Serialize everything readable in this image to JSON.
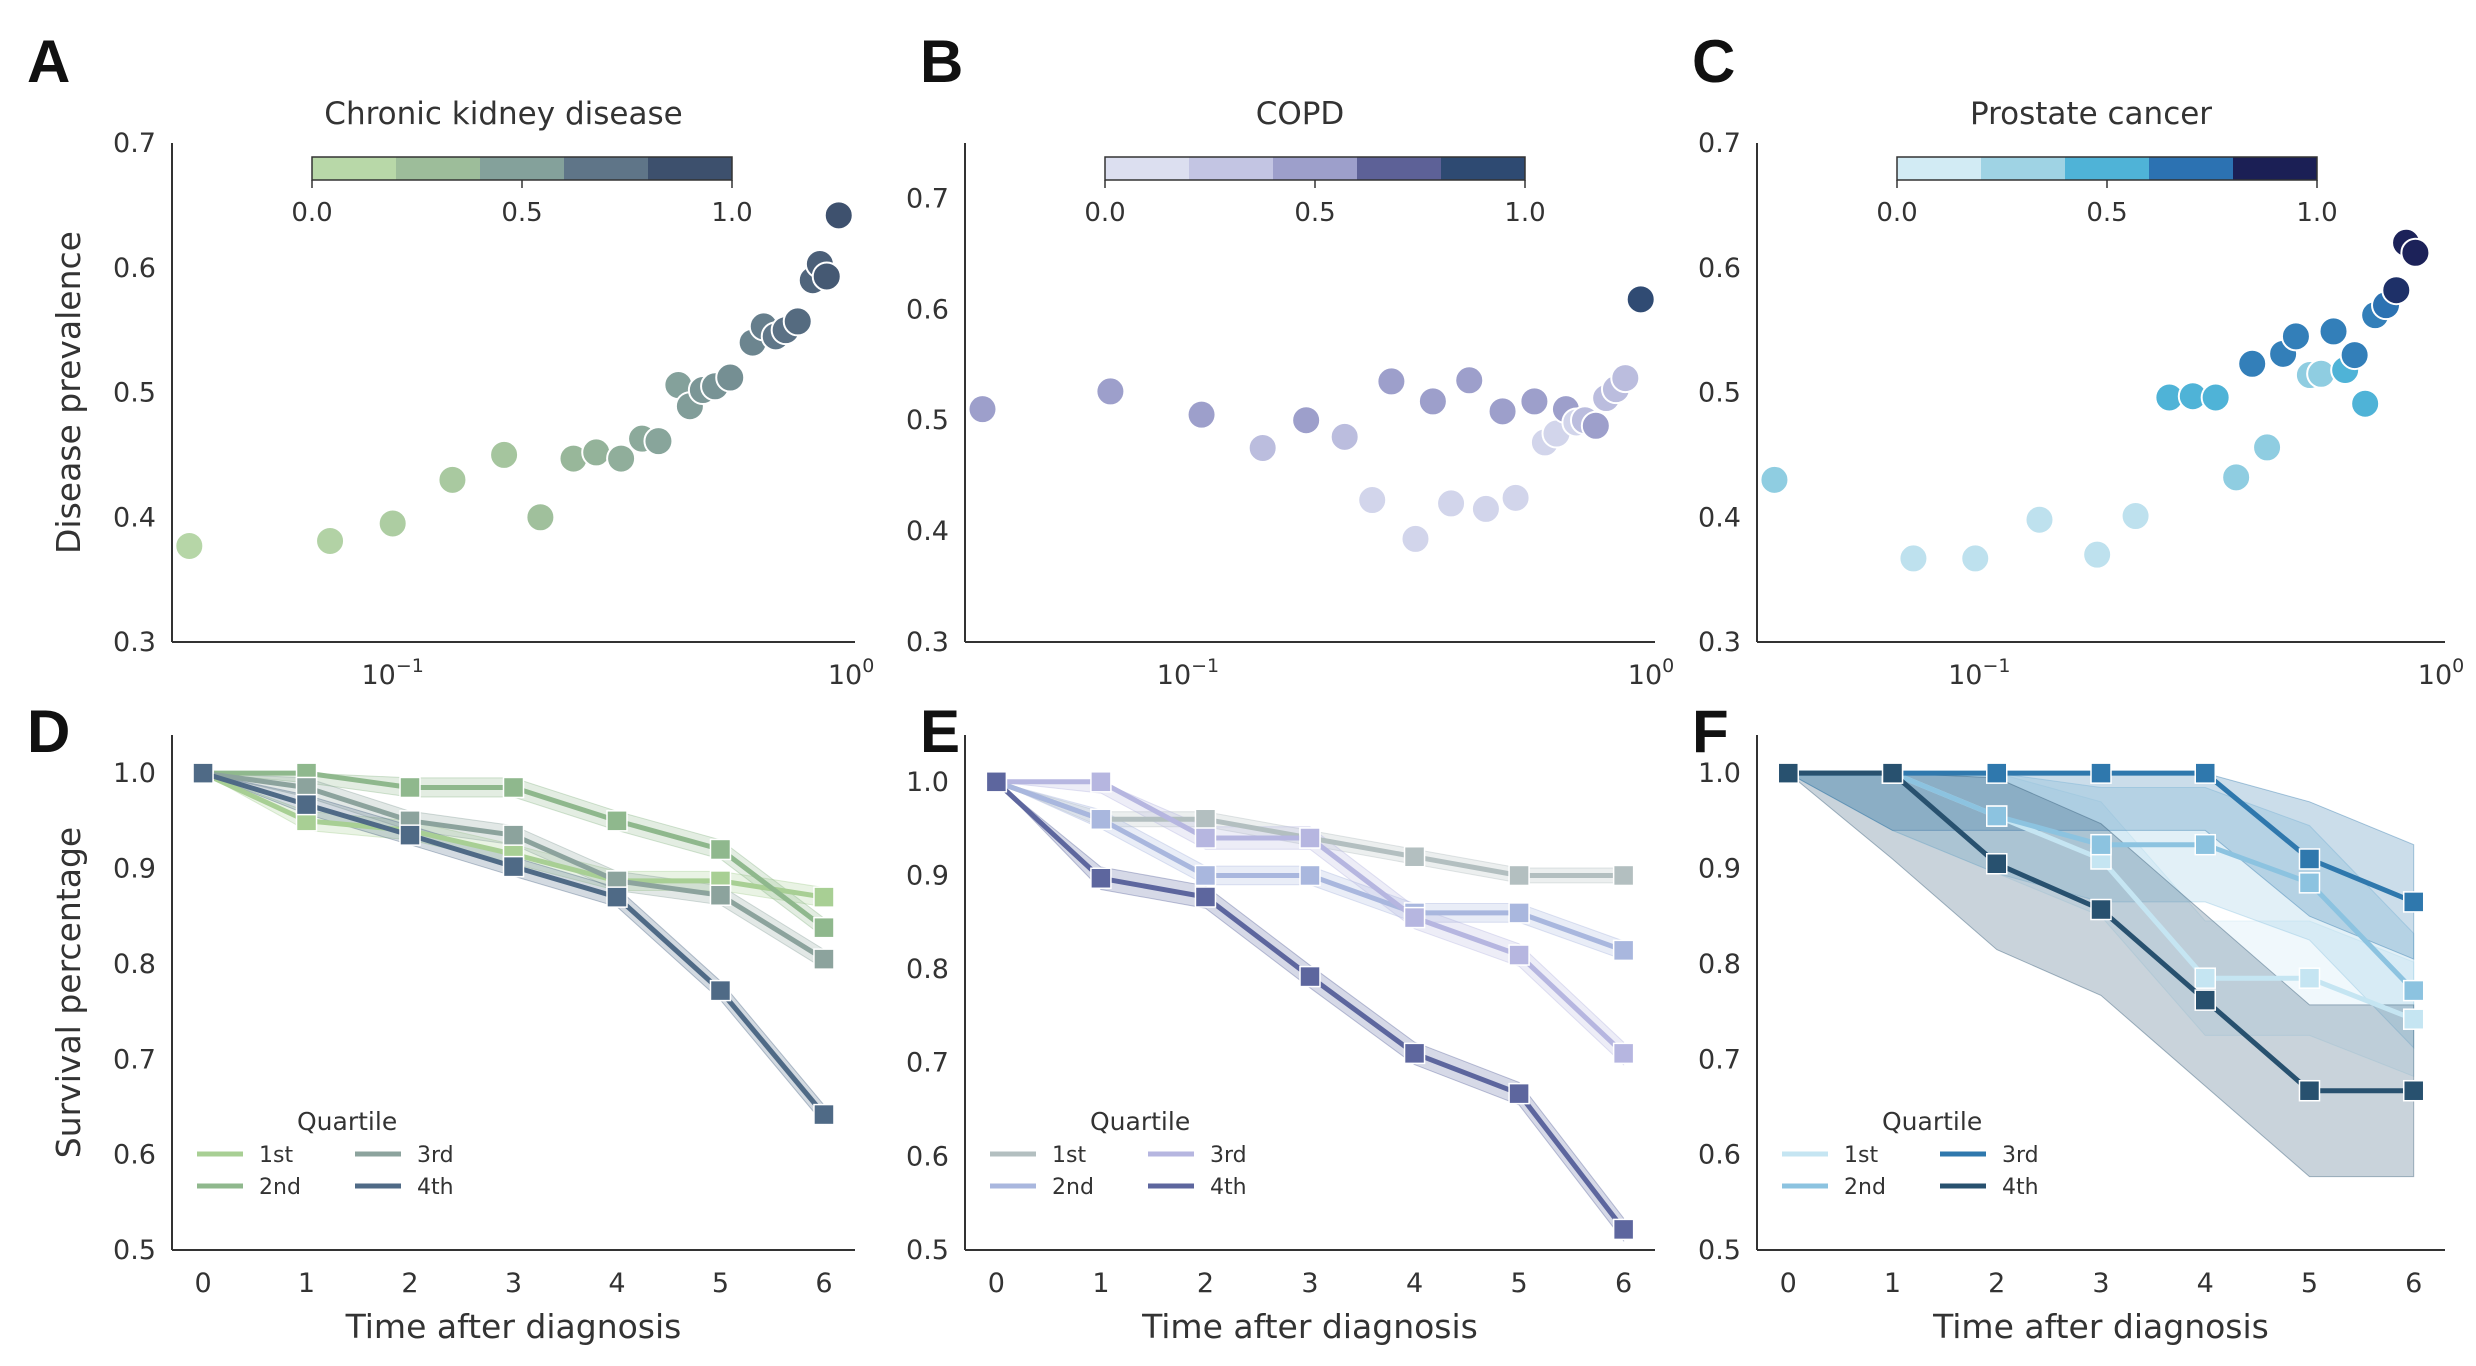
{
  "chart_data": [
    {
      "panel_label": "A",
      "type": "scatter",
      "title": "Chronic kidney disease",
      "xlabel": "",
      "ylabel": "Disease prevalence",
      "xscale": "log",
      "xlim": [
        0.033,
        1.02
      ],
      "ylim": [
        0.3,
        0.7
      ],
      "yticks": [
        "0.3",
        "0.4",
        "0.5",
        "0.6",
        "0.7"
      ],
      "xticks": [
        "10",
        "10"
      ],
      "xtick_exponents": [
        "−1",
        "0"
      ],
      "xtick_values": [
        0.1,
        1.0
      ],
      "colorbar": {
        "ticks": [
          "0.0",
          "0.5",
          "1.0"
        ],
        "colors": [
          "#b8d8a8",
          "#9dbd9a",
          "#84a19b",
          "#5f7588",
          "#3d506d"
        ]
      },
      "grid": false,
      "points": [
        {
          "x": 0.036,
          "y": 0.377,
          "c": 0.02
        },
        {
          "x": 0.073,
          "y": 0.381,
          "c": 0.06
        },
        {
          "x": 0.1,
          "y": 0.395,
          "c": 0.1
        },
        {
          "x": 0.135,
          "y": 0.43,
          "c": 0.14
        },
        {
          "x": 0.175,
          "y": 0.45,
          "c": 0.18
        },
        {
          "x": 0.21,
          "y": 0.4,
          "c": 0.22
        },
        {
          "x": 0.248,
          "y": 0.447,
          "c": 0.3
        },
        {
          "x": 0.278,
          "y": 0.452,
          "c": 0.34
        },
        {
          "x": 0.315,
          "y": 0.447,
          "c": 0.38
        },
        {
          "x": 0.35,
          "y": 0.463,
          "c": 0.42
        },
        {
          "x": 0.38,
          "y": 0.461,
          "c": 0.46
        },
        {
          "x": 0.42,
          "y": 0.506,
          "c": 0.5
        },
        {
          "x": 0.445,
          "y": 0.489,
          "c": 0.52
        },
        {
          "x": 0.475,
          "y": 0.502,
          "c": 0.56
        },
        {
          "x": 0.505,
          "y": 0.505,
          "c": 0.58
        },
        {
          "x": 0.545,
          "y": 0.512,
          "c": 0.6
        },
        {
          "x": 0.61,
          "y": 0.54,
          "c": 0.66
        },
        {
          "x": 0.645,
          "y": 0.553,
          "c": 0.7
        },
        {
          "x": 0.685,
          "y": 0.545,
          "c": 0.74
        },
        {
          "x": 0.72,
          "y": 0.55,
          "c": 0.78
        },
        {
          "x": 0.765,
          "y": 0.557,
          "c": 0.82
        },
        {
          "x": 0.825,
          "y": 0.59,
          "c": 0.86
        },
        {
          "x": 0.855,
          "y": 0.603,
          "c": 0.9
        },
        {
          "x": 0.885,
          "y": 0.593,
          "c": 0.94
        },
        {
          "x": 0.94,
          "y": 0.642,
          "c": 0.99
        }
      ]
    },
    {
      "panel_label": "B",
      "type": "scatter",
      "title": "COPD",
      "xlabel": "",
      "ylabel": "",
      "xscale": "log",
      "xlim": [
        0.033,
        1.02
      ],
      "ylim": [
        0.3,
        0.75
      ],
      "yticks": [
        "0.3",
        "0.4",
        "0.5",
        "0.6",
        "0.7"
      ],
      "xticks": [
        "10",
        "10"
      ],
      "xtick_exponents": [
        "−1",
        "0"
      ],
      "xtick_values": [
        0.1,
        1.0
      ],
      "colorbar": {
        "ticks": [
          "0.0",
          "0.5",
          "1.0"
        ],
        "colors": [
          "#dcdff0",
          "#c3c5e3",
          "#9d9fcb",
          "#5d6197",
          "#2e4a72"
        ]
      },
      "grid": false,
      "points": [
        {
          "x": 0.036,
          "y": 0.51,
          "c": 0.5
        },
        {
          "x": 0.068,
          "y": 0.526,
          "c": 0.5
        },
        {
          "x": 0.107,
          "y": 0.505,
          "c": 0.5
        },
        {
          "x": 0.145,
          "y": 0.475,
          "c": 0.3
        },
        {
          "x": 0.18,
          "y": 0.5,
          "c": 0.5
        },
        {
          "x": 0.218,
          "y": 0.485,
          "c": 0.3
        },
        {
          "x": 0.25,
          "y": 0.428,
          "c": 0.1
        },
        {
          "x": 0.275,
          "y": 0.535,
          "c": 0.5
        },
        {
          "x": 0.31,
          "y": 0.393,
          "c": 0.1
        },
        {
          "x": 0.338,
          "y": 0.517,
          "c": 0.5
        },
        {
          "x": 0.37,
          "y": 0.425,
          "c": 0.1
        },
        {
          "x": 0.405,
          "y": 0.536,
          "c": 0.5
        },
        {
          "x": 0.44,
          "y": 0.42,
          "c": 0.1
        },
        {
          "x": 0.478,
          "y": 0.508,
          "c": 0.5
        },
        {
          "x": 0.51,
          "y": 0.43,
          "c": 0.1
        },
        {
          "x": 0.56,
          "y": 0.517,
          "c": 0.5
        },
        {
          "x": 0.59,
          "y": 0.48,
          "c": 0.1
        },
        {
          "x": 0.625,
          "y": 0.488,
          "c": 0.1
        },
        {
          "x": 0.655,
          "y": 0.51,
          "c": 0.5
        },
        {
          "x": 0.69,
          "y": 0.498,
          "c": 0.1
        },
        {
          "x": 0.72,
          "y": 0.5,
          "c": 0.3
        },
        {
          "x": 0.76,
          "y": 0.495,
          "c": 0.5
        },
        {
          "x": 0.8,
          "y": 0.52,
          "c": 0.3
        },
        {
          "x": 0.84,
          "y": 0.528,
          "c": 0.3
        },
        {
          "x": 0.88,
          "y": 0.538,
          "c": 0.3
        },
        {
          "x": 0.95,
          "y": 0.609,
          "c": 0.99
        }
      ]
    },
    {
      "panel_label": "C",
      "type": "scatter",
      "title": "Prostate cancer",
      "xlabel": "",
      "ylabel": "",
      "xscale": "log",
      "xlim": [
        0.033,
        1.02
      ],
      "ylim": [
        0.3,
        0.7
      ],
      "yticks": [
        "0.3",
        "0.4",
        "0.5",
        "0.6",
        "0.7"
      ],
      "xticks": [
        "10",
        "10"
      ],
      "xtick_exponents": [
        "−1",
        "0"
      ],
      "xtick_values": [
        0.1,
        1.0
      ],
      "colorbar": {
        "ticks": [
          "0.0",
          "0.5",
          "1.0"
        ],
        "colors": [
          "#d2ebf4",
          "#9fd3e4",
          "#4fb3d7",
          "#2c72b2",
          "#1b1f55"
        ]
      },
      "grid": false,
      "points": [
        {
          "x": 0.036,
          "y": 0.43,
          "c": 0.3
        },
        {
          "x": 0.072,
          "y": 0.367,
          "c": 0.1
        },
        {
          "x": 0.098,
          "y": 0.367,
          "c": 0.1
        },
        {
          "x": 0.135,
          "y": 0.398,
          "c": 0.1
        },
        {
          "x": 0.18,
          "y": 0.37,
          "c": 0.1
        },
        {
          "x": 0.218,
          "y": 0.401,
          "c": 0.1
        },
        {
          "x": 0.258,
          "y": 0.496,
          "c": 0.5
        },
        {
          "x": 0.29,
          "y": 0.497,
          "c": 0.5
        },
        {
          "x": 0.325,
          "y": 0.496,
          "c": 0.5
        },
        {
          "x": 0.36,
          "y": 0.432,
          "c": 0.3
        },
        {
          "x": 0.39,
          "y": 0.523,
          "c": 0.7
        },
        {
          "x": 0.42,
          "y": 0.456,
          "c": 0.3
        },
        {
          "x": 0.455,
          "y": 0.531,
          "c": 0.7
        },
        {
          "x": 0.485,
          "y": 0.545,
          "c": 0.7
        },
        {
          "x": 0.52,
          "y": 0.514,
          "c": 0.3
        },
        {
          "x": 0.55,
          "y": 0.515,
          "c": 0.3
        },
        {
          "x": 0.585,
          "y": 0.549,
          "c": 0.7
        },
        {
          "x": 0.62,
          "y": 0.518,
          "c": 0.5
        },
        {
          "x": 0.65,
          "y": 0.53,
          "c": 0.7
        },
        {
          "x": 0.685,
          "y": 0.491,
          "c": 0.5
        },
        {
          "x": 0.72,
          "y": 0.562,
          "c": 0.7
        },
        {
          "x": 0.76,
          "y": 0.57,
          "c": 0.75
        },
        {
          "x": 0.8,
          "y": 0.582,
          "c": 0.95
        },
        {
          "x": 0.84,
          "y": 0.62,
          "c": 0.99
        },
        {
          "x": 0.88,
          "y": 0.612,
          "c": 0.99
        }
      ]
    },
    {
      "panel_label": "D",
      "type": "line",
      "title": "",
      "xlabel": "Time after diagnosis",
      "ylabel": "Survival percentage",
      "x": [
        0,
        1,
        2,
        3,
        4,
        5,
        6
      ],
      "xlim": [
        -0.3,
        6.3
      ],
      "ylim": [
        0.5,
        1.04
      ],
      "xticks": [
        "0",
        "1",
        "2",
        "3",
        "4",
        "5",
        "6"
      ],
      "yticks": [
        "0.5",
        "0.6",
        "0.7",
        "0.8",
        "0.9",
        "1.0"
      ],
      "legend": {
        "title": "Quartile",
        "placement": "lower-left"
      },
      "grid": false,
      "series": [
        {
          "name": "1st",
          "color": "#a8cf94",
          "values": [
            1.0,
            0.95,
            0.94,
            0.915,
            0.887,
            0.887,
            0.87
          ],
          "band": 0.01
        },
        {
          "name": "2nd",
          "color": "#8fb88d",
          "values": [
            1.0,
            1.0,
            0.985,
            0.985,
            0.95,
            0.92,
            0.838
          ],
          "band": 0.01
        },
        {
          "name": "3rd",
          "color": "#8ca39d",
          "values": [
            1.0,
            0.985,
            0.95,
            0.935,
            0.887,
            0.872,
            0.805
          ],
          "band": 0.01
        },
        {
          "name": "4th",
          "color": "#4f6a86",
          "values": [
            1.0,
            0.967,
            0.935,
            0.902,
            0.87,
            0.772,
            0.642
          ],
          "band": 0.01
        }
      ]
    },
    {
      "panel_label": "E",
      "type": "line",
      "title": "",
      "xlabel": "Time after diagnosis",
      "ylabel": "",
      "x": [
        0,
        1,
        2,
        3,
        4,
        5,
        6
      ],
      "xlim": [
        -0.3,
        6.3
      ],
      "ylim": [
        0.5,
        1.05
      ],
      "xticks": [
        "0",
        "1",
        "2",
        "3",
        "4",
        "5",
        "6"
      ],
      "yticks": [
        "0.5",
        "0.6",
        "0.7",
        "0.8",
        "0.9",
        "1.0"
      ],
      "legend": {
        "title": "Quartile",
        "placement": "lower-left"
      },
      "grid": false,
      "series": [
        {
          "name": "1st",
          "color": "#b3bfc0",
          "values": [
            1.0,
            0.96,
            0.96,
            0.94,
            0.92,
            0.9,
            0.9
          ],
          "band": 0.008
        },
        {
          "name": "2nd",
          "color": "#a9b7de",
          "values": [
            1.0,
            0.96,
            0.9,
            0.9,
            0.86,
            0.86,
            0.82
          ],
          "band": 0.01
        },
        {
          "name": "3rd",
          "color": "#b6b6e0",
          "values": [
            1.0,
            1.0,
            0.94,
            0.94,
            0.855,
            0.815,
            0.71
          ],
          "band": 0.012
        },
        {
          "name": "4th",
          "color": "#5d669e",
          "values": [
            1.0,
            0.897,
            0.877,
            0.792,
            0.71,
            0.667,
            0.522
          ],
          "band": 0.012
        }
      ]
    },
    {
      "panel_label": "F",
      "type": "line",
      "title": "",
      "xlabel": "Time after diagnosis",
      "ylabel": "",
      "x": [
        0,
        1,
        2,
        3,
        4,
        5,
        6
      ],
      "xlim": [
        -0.3,
        6.3
      ],
      "ylim": [
        0.5,
        1.04
      ],
      "xticks": [
        "0",
        "1",
        "2",
        "3",
        "4",
        "5",
        "6"
      ],
      "yticks": [
        "0.5",
        "0.6",
        "0.7",
        "0.8",
        "0.9",
        "1.0"
      ],
      "legend": {
        "title": "Quartile",
        "placement": "lower-left"
      },
      "grid": false,
      "series": [
        {
          "name": "1st",
          "color": "#c5e5f2",
          "values": [
            1.0,
            1.0,
            0.955,
            0.91,
            0.785,
            0.785,
            0.742
          ],
          "band": 0.06
        },
        {
          "name": "2nd",
          "color": "#8cc3e0",
          "values": [
            1.0,
            1.0,
            0.955,
            0.925,
            0.925,
            0.885,
            0.772
          ],
          "band": 0.06
        },
        {
          "name": "3rd",
          "color": "#2f78ad",
          "values": [
            1.0,
            1.0,
            1.0,
            1.0,
            1.0,
            0.91,
            0.865
          ],
          "band": 0.06
        },
        {
          "name": "4th",
          "color": "#28516f",
          "values": [
            1.0,
            1.0,
            0.905,
            0.857,
            0.762,
            0.667,
            0.667
          ],
          "band": 0.09
        }
      ]
    }
  ]
}
